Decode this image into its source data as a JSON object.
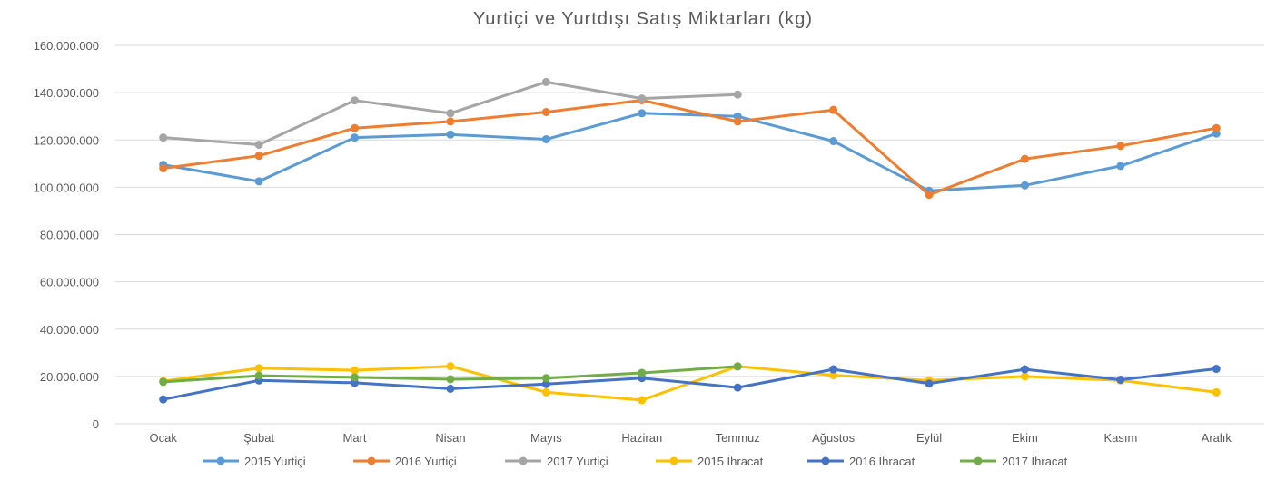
{
  "chart_data": {
    "type": "line",
    "title": "Yurtiçi ve Yurtdışı Satış Miktarları (kg)",
    "categories": [
      "Ocak",
      "Şubat",
      "Mart",
      "Nisan",
      "Mayıs",
      "Haziran",
      "Temmuz",
      "Ağustos",
      "Eylül",
      "Ekim",
      "Kasım",
      "Aralık"
    ],
    "ylim": [
      0,
      160000000
    ],
    "yticks": [
      {
        "value": 0,
        "label": "0"
      },
      {
        "value": 20000000,
        "label": "20.000.000"
      },
      {
        "value": 40000000,
        "label": "40.000.000"
      },
      {
        "value": 60000000,
        "label": "60.000.000"
      },
      {
        "value": 80000000,
        "label": "80.000.000"
      },
      {
        "value": 100000000,
        "label": "100.000.000"
      },
      {
        "value": 120000000,
        "label": "120.000.000"
      },
      {
        "value": 140000000,
        "label": "140.000.000"
      },
      {
        "value": 160000000,
        "label": "160.000.000"
      }
    ],
    "grid": true,
    "legend_position": "bottom",
    "series": [
      {
        "name": "2015 Yurtiçi",
        "color": "#5B9BD5",
        "values": [
          109500000,
          102500000,
          121000000,
          122300000,
          120300000,
          131300000,
          130000000,
          119500000,
          98500000,
          100800000,
          109000000,
          122700000
        ]
      },
      {
        "name": "2016 Yurtiçi",
        "color": "#ED7D31",
        "values": [
          108000000,
          113300000,
          125000000,
          127800000,
          131800000,
          136800000,
          127800000,
          132700000,
          96800000,
          112000000,
          117500000,
          125000000
        ]
      },
      {
        "name": "2017 Yurtiçi",
        "color": "#A5A5A5",
        "values": [
          121000000,
          118000000,
          136700000,
          131300000,
          144500000,
          137500000,
          139200000,
          null,
          null,
          null,
          null,
          null
        ]
      },
      {
        "name": "2015 İhracat",
        "color": "#FFC000",
        "values": [
          18000000,
          23500000,
          22600000,
          24300000,
          13300000,
          10000000,
          24300000,
          20500000,
          18300000,
          20000000,
          18300000,
          13300000
        ]
      },
      {
        "name": "2016 İhracat",
        "color": "#4472C4",
        "values": [
          10300000,
          18300000,
          17300000,
          14800000,
          16800000,
          19300000,
          15300000,
          23000000,
          17000000,
          23000000,
          18600000,
          23200000
        ]
      },
      {
        "name": "2017 İhracat",
        "color": "#70AD47",
        "values": [
          17700000,
          20300000,
          19600000,
          18800000,
          19300000,
          21500000,
          24200000,
          null,
          null,
          null,
          null,
          null
        ]
      }
    ]
  }
}
